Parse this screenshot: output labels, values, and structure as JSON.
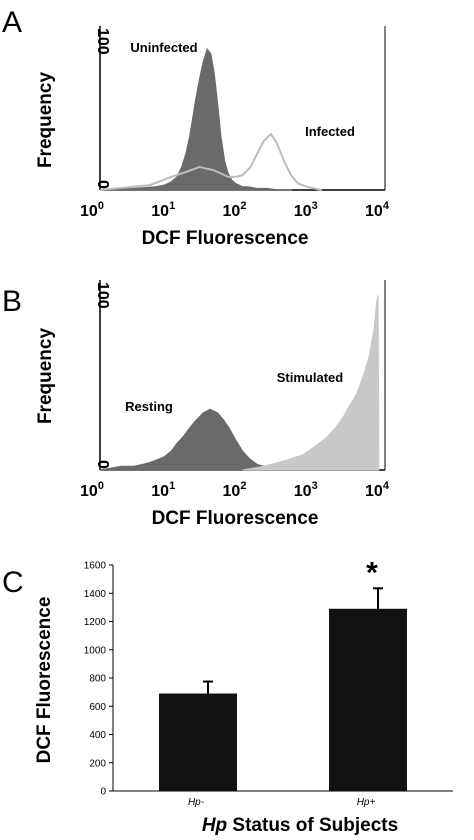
{
  "chart_data": [
    {
      "panel": "A",
      "type": "area",
      "xscale": "log",
      "xlim": [
        1,
        10000
      ],
      "ylim": [
        0,
        100
      ],
      "xlabel": "DCF Fluorescence",
      "ylabel": "Frequency",
      "ytick_labels": [
        "100",
        "0"
      ],
      "xtick_labels": [
        {
          "base": "10",
          "exp": "0"
        },
        {
          "base": "10",
          "exp": "1"
        },
        {
          "base": "10",
          "exp": "2"
        },
        {
          "base": "10",
          "exp": "3"
        },
        {
          "base": "10",
          "exp": "4"
        }
      ],
      "series": [
        {
          "name": "Uninfected",
          "style": "filled",
          "color": "#6a6a6a",
          "x": [
            1,
            3,
            6,
            8,
            10,
            12,
            14,
            16,
            18,
            20,
            22,
            25,
            28,
            32,
            36,
            40,
            45,
            50,
            56,
            63,
            71,
            80,
            90,
            100,
            120,
            160,
            220,
            320,
            500
          ],
          "y": [
            0,
            1,
            2,
            3,
            5,
            8,
            14,
            22,
            32,
            44,
            55,
            68,
            78,
            86,
            83,
            72,
            52,
            32,
            18,
            10,
            6,
            4,
            3,
            2,
            2,
            1,
            1,
            0,
            0
          ]
        },
        {
          "name": "Infected",
          "style": "outline",
          "color": "#bcbcbc",
          "x": [
            1,
            5,
            10,
            16,
            25,
            40,
            63,
            80,
            100,
            130,
            160,
            200,
            250,
            300,
            380,
            480,
            600,
            800,
            1000,
            1300
          ],
          "y": [
            0,
            3,
            8,
            11,
            14,
            12,
            8,
            8,
            9,
            14,
            22,
            30,
            34,
            29,
            18,
            9,
            4,
            2,
            1,
            0
          ]
        }
      ]
    },
    {
      "panel": "B",
      "type": "area",
      "xscale": "log",
      "xlim": [
        1,
        10000
      ],
      "ylim": [
        0,
        100
      ],
      "xlabel": "DCF Fluorescence",
      "ylabel": "Frequency",
      "ytick_labels": [
        "100",
        "0"
      ],
      "xtick_labels": [
        {
          "base": "10",
          "exp": "0"
        },
        {
          "base": "10",
          "exp": "1"
        },
        {
          "base": "10",
          "exp": "2"
        },
        {
          "base": "10",
          "exp": "3"
        },
        {
          "base": "10",
          "exp": "4"
        }
      ],
      "series": [
        {
          "name": "Resting",
          "style": "filled",
          "color": "#6a6a6a",
          "x": [
            1,
            2,
            3,
            4,
            5,
            6,
            8,
            10,
            12,
            15,
            18,
            22,
            28,
            35,
            45,
            55,
            65,
            80,
            100,
            125,
            160,
            200,
            250,
            300
          ],
          "y": [
            0,
            2,
            2,
            3,
            4,
            5,
            7,
            10,
            14,
            18,
            22,
            26,
            30,
            32,
            30,
            26,
            22,
            16,
            10,
            6,
            3,
            2,
            1,
            0
          ]
        },
        {
          "name": "Stimulated",
          "style": "filled",
          "color": "#c8c8c8",
          "x": [
            100,
            200,
            400,
            700,
            1000,
            1500,
            2000,
            2600,
            3200,
            4000,
            5000,
            6000,
            7000,
            7600,
            8000,
            8200
          ],
          "y": [
            0,
            2,
            5,
            8,
            12,
            17,
            22,
            28,
            34,
            40,
            50,
            60,
            74,
            88,
            92,
            0
          ]
        }
      ]
    },
    {
      "panel": "C",
      "type": "bar",
      "categories": [
        "Hp-",
        "Hp+"
      ],
      "values": [
        690,
        1290
      ],
      "errors": [
        85,
        145
      ],
      "ylim": [
        0,
        1600
      ],
      "yticks": [
        "0",
        "200",
        "400",
        "600",
        "800",
        "1000",
        "1200",
        "1400",
        "1600"
      ],
      "ylabel": "DCF Fluorescence",
      "xlabel_italic": "Hp",
      "xlabel_rest": " Status of Subjects",
      "significance": "*",
      "bar_color": "#111111"
    }
  ]
}
